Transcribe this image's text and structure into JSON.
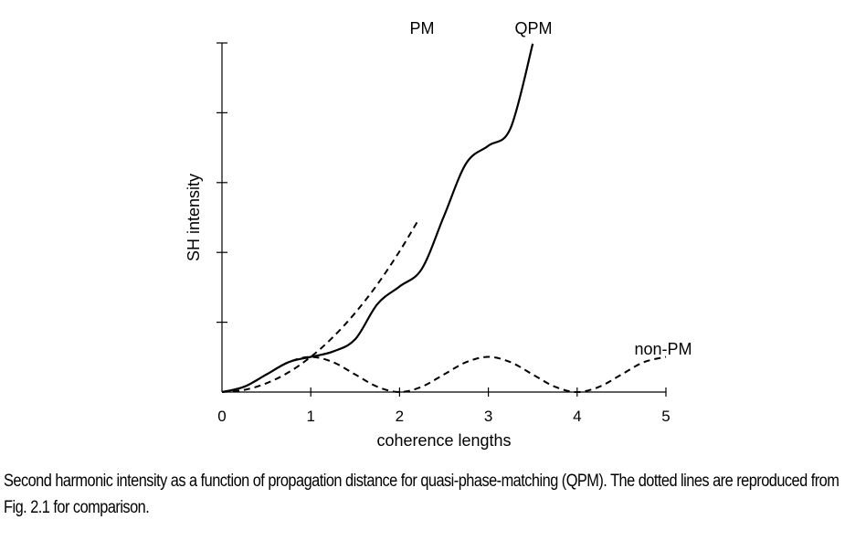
{
  "chart_data": {
    "type": "line",
    "xlabel": "coherence lengths",
    "ylabel": "SH intensity",
    "xlim": [
      0,
      5
    ],
    "x_ticks": [
      "0",
      "1",
      "2",
      "3",
      "4",
      "5"
    ],
    "y_tick_count": 5,
    "grid": false,
    "series": [
      {
        "name": "PM",
        "style": "dashed",
        "color": "#000000",
        "x": [
          0,
          0.25,
          0.5,
          0.75,
          1.0,
          1.25,
          1.5,
          1.75,
          2.0,
          2.2
        ],
        "y": [
          0,
          0.06,
          0.25,
          0.56,
          1.0,
          1.56,
          2.25,
          3.06,
          4.0,
          4.84
        ]
      },
      {
        "name": "QPM",
        "style": "solid",
        "color": "#000000",
        "x": [
          0,
          0.25,
          0.5,
          0.75,
          1.0,
          1.25,
          1.5,
          1.75,
          2.0,
          2.25,
          2.5,
          2.75,
          3.0,
          3.25,
          3.5
        ],
        "y": [
          0,
          0.15,
          0.5,
          0.85,
          1.0,
          1.15,
          1.5,
          2.5,
          3.0,
          3.5,
          5.0,
          6.5,
          7.0,
          7.5,
          9.9
        ]
      },
      {
        "name": "non-PM",
        "style": "dashed",
        "color": "#000000",
        "x": [
          0,
          0.25,
          0.5,
          0.75,
          1.0,
          1.25,
          1.5,
          1.75,
          2.0,
          2.25,
          2.5,
          2.75,
          3.0,
          3.25,
          3.5,
          3.75,
          4.0,
          4.25,
          4.5,
          4.75,
          5.0
        ],
        "y": [
          0,
          0.15,
          0.5,
          0.85,
          1.0,
          0.85,
          0.5,
          0.15,
          0,
          0.15,
          0.5,
          0.85,
          1.0,
          0.85,
          0.5,
          0.15,
          0,
          0.15,
          0.5,
          0.85,
          1.0
        ]
      }
    ]
  },
  "caption": "Second harmonic intensity as a function of propagation distance for quasi-phase-matching (QPM). The dotted lines are reproduced from Fig. 2.1 for comparison."
}
